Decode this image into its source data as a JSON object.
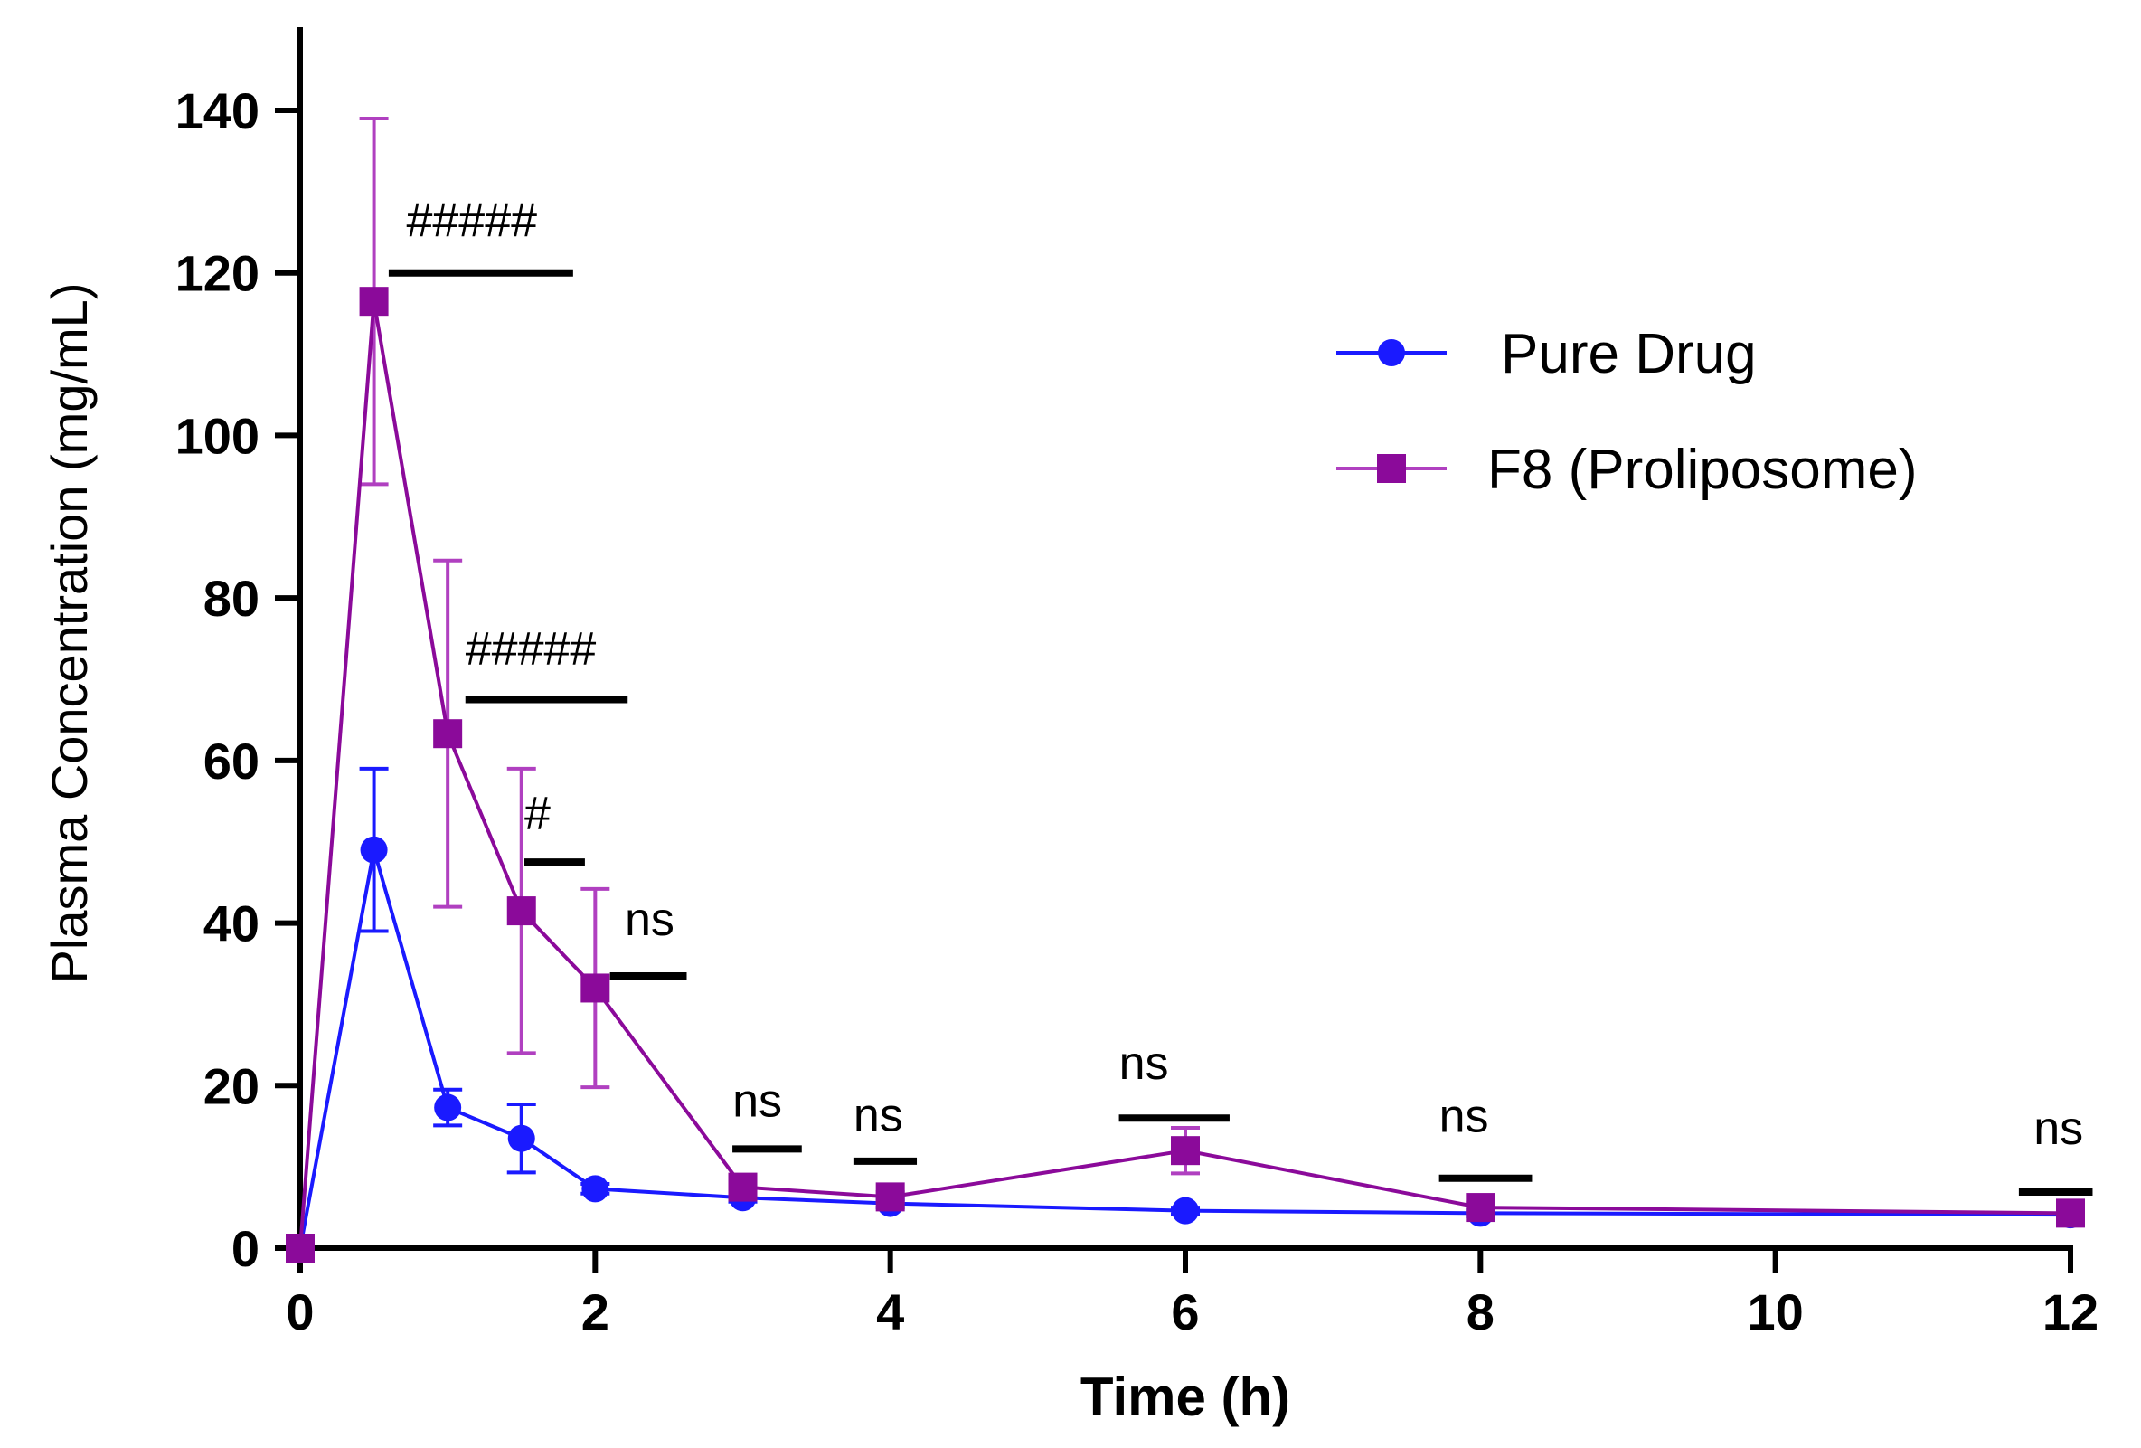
{
  "chart_data": {
    "type": "line",
    "title": "",
    "xlabel": "Time (h)",
    "ylabel": "Plasma Concentration (mg/mL)",
    "xlim": [
      0,
      12
    ],
    "ylim": [
      0,
      150
    ],
    "xticks": [
      0,
      2,
      4,
      6,
      8,
      10,
      12
    ],
    "yticks": [
      0,
      20,
      40,
      60,
      80,
      100,
      120,
      140
    ],
    "xtick_labels": [
      "0",
      "2",
      "4",
      "6",
      "8",
      "10",
      "12"
    ],
    "ytick_labels": [
      "0",
      "20",
      "40",
      "60",
      "80",
      "100",
      "120",
      "140"
    ],
    "grid": false,
    "legend_position": "top-right",
    "series": [
      {
        "name": "Pure Drug",
        "marker": "circle",
        "color": "#1a1aff",
        "errcolor": "#1a1aff",
        "x": [
          0,
          0.5,
          1,
          1.5,
          2,
          3,
          4,
          6,
          8,
          12
        ],
        "values": [
          0,
          49,
          17.3,
          13.5,
          7.3,
          6.2,
          5.5,
          4.6,
          4.3,
          4.1
        ],
        "error": [
          0,
          10,
          2.2,
          4.2,
          0.6,
          0.5,
          0.5,
          0.4,
          0.4,
          0.4
        ]
      },
      {
        "name": "F8 (Proliposome)",
        "marker": "square",
        "color": "#8b0a9a",
        "errcolor": "#b040c0",
        "x": [
          0,
          0.5,
          1,
          1.5,
          2,
          3,
          4,
          6,
          8,
          12
        ],
        "values": [
          0,
          116.5,
          63.3,
          41.5,
          32,
          7.5,
          6.3,
          12,
          5,
          4.3
        ],
        "error": [
          0,
          22.5,
          21.3,
          17.5,
          12.2,
          0.8,
          0.6,
          2.8,
          0.6,
          0.5
        ]
      }
    ],
    "annotations": [
      {
        "text": "#####",
        "x": 1.25,
        "y": 120
      },
      {
        "text": "#####",
        "x": 1.7,
        "y": 67.5
      },
      {
        "text": "#",
        "x": 1.72,
        "y": 47.5
      },
      {
        "text": "ns",
        "x": 2.4,
        "y": 33.5
      },
      {
        "text": "ns",
        "x": 3.18,
        "y": 12.2
      },
      {
        "text": "ns",
        "x": 3.94,
        "y": 10.7
      },
      {
        "text": "ns",
        "x": 5.93,
        "y": 16
      },
      {
        "text": "ns",
        "x": 8.03,
        "y": 8.6
      },
      {
        "text": "ns",
        "x": 12.0,
        "y": 6.9
      }
    ]
  }
}
